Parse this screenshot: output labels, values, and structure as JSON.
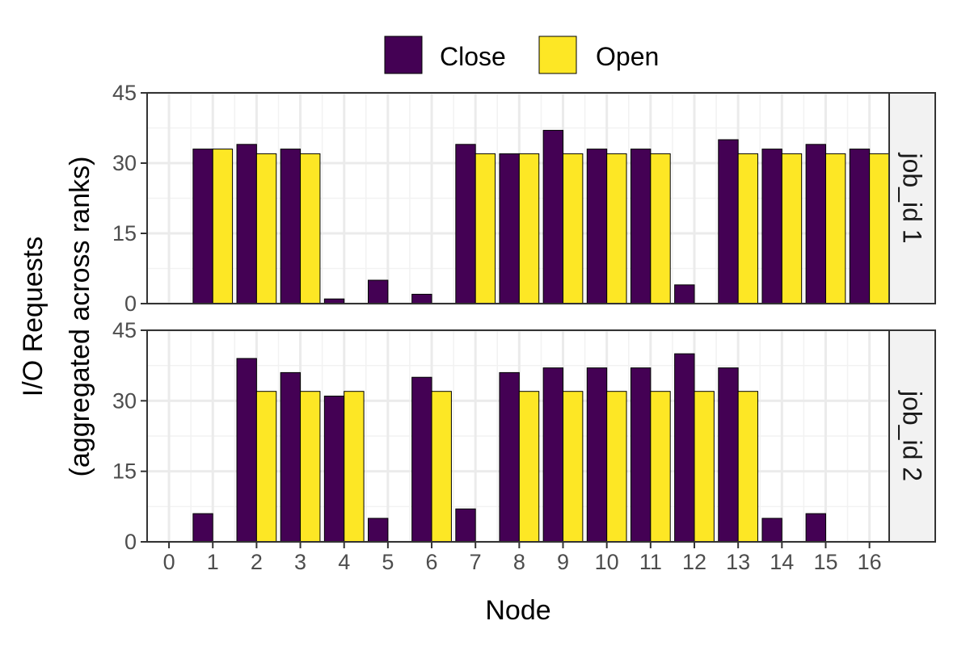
{
  "chart_data": {
    "type": "bar",
    "xlabel": "Node",
    "ylabel_line1": "I/O Requests",
    "ylabel_line2": "(aggregated across ranks)",
    "xlim": [
      0,
      16
    ],
    "ylim": [
      0,
      45
    ],
    "x_ticks": [
      0,
      1,
      2,
      3,
      4,
      5,
      6,
      7,
      8,
      9,
      10,
      11,
      12,
      13,
      14,
      15,
      16
    ],
    "y_ticks": [
      0,
      15,
      30,
      45
    ],
    "grid": true,
    "legend_position": "top",
    "colors": {
      "Close": "#440154",
      "Open": "#FDE725"
    },
    "legend": [
      {
        "name": "Close",
        "color": "#440154"
      },
      {
        "name": "Open",
        "color": "#FDE725"
      }
    ],
    "panels": [
      {
        "label": "job_id 1",
        "series": [
          {
            "name": "Close",
            "values": [
              33,
              34,
              33,
              1,
              5,
              2,
              34,
              32,
              37,
              33,
              33,
              4,
              35,
              33,
              34,
              33
            ]
          },
          {
            "name": "Open",
            "values": [
              33,
              32,
              32,
              0,
              0,
              0,
              32,
              32,
              32,
              32,
              32,
              0,
              32,
              32,
              32,
              32
            ]
          }
        ]
      },
      {
        "label": "job_id 2",
        "series": [
          {
            "name": "Close",
            "values": [
              6,
              39,
              36,
              31,
              5,
              35,
              7,
              36,
              37,
              37,
              37,
              40,
              37,
              5,
              6,
              0
            ]
          },
          {
            "name": "Open",
            "values": [
              0,
              32,
              32,
              32,
              0,
              32,
              0,
              32,
              32,
              32,
              32,
              32,
              32,
              0,
              0,
              0
            ]
          }
        ]
      }
    ]
  }
}
